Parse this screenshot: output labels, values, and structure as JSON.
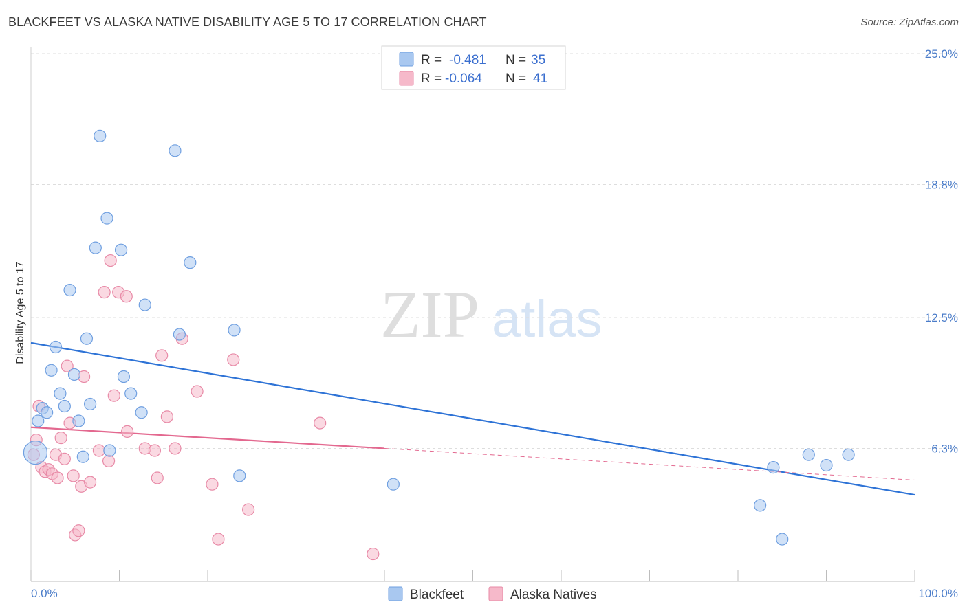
{
  "title": "BLACKFEET VS ALASKA NATIVE DISABILITY AGE 5 TO 17 CORRELATION CHART",
  "source": "Source: ZipAtlas.com",
  "watermark": {
    "zip": "ZIP",
    "atlas": "atlas"
  },
  "colors": {
    "blue_fill": "#a9c8f0",
    "blue_stroke": "#6f9fe0",
    "blue_line": "#2e73d6",
    "pink_fill": "#f6b9ca",
    "pink_stroke": "#e88aa7",
    "pink_line": "#e3688f",
    "tick_label": "#4a7cc9",
    "grid": "#dddddd"
  },
  "legend": {
    "rows": [
      {
        "r_label": "R =",
        "r_value": "-0.481",
        "n_label": "N =",
        "n_value": "35"
      },
      {
        "r_label": "R =",
        "r_value": "-0.064",
        "n_label": "N =",
        "n_value": "41"
      }
    ]
  },
  "bottom_legend": [
    "Blackfeet",
    "Alaska Natives"
  ],
  "chart_data": {
    "type": "scatter",
    "title": "BLACKFEET VS ALASKA NATIVE DISABILITY AGE 5 TO 17 CORRELATION CHART",
    "xlabel": "",
    "ylabel": "Disability Age 5 to 17",
    "xlim": [
      0,
      100
    ],
    "ylim": [
      0,
      25
    ],
    "x_tick_labels": [
      "0.0%",
      "100.0%"
    ],
    "y_ticks": [
      6.3,
      12.5,
      18.8,
      25.0
    ],
    "y_tick_labels": [
      "6.3%",
      "12.5%",
      "18.8%",
      "25.0%"
    ],
    "grid": "horizontal dashed",
    "series": [
      {
        "name": "Blackfeet",
        "trend": {
          "x": [
            0,
            100
          ],
          "y": [
            11.3,
            4.1
          ]
        },
        "points": [
          [
            0.5,
            6.1
          ],
          [
            0.8,
            7.6
          ],
          [
            1.3,
            8.2
          ],
          [
            1.8,
            8.0
          ],
          [
            2.3,
            10.0
          ],
          [
            2.8,
            11.1
          ],
          [
            3.3,
            8.9
          ],
          [
            3.8,
            8.3
          ],
          [
            4.4,
            13.8
          ],
          [
            4.9,
            9.8
          ],
          [
            5.4,
            7.6
          ],
          [
            5.9,
            5.9
          ],
          [
            6.3,
            11.5
          ],
          [
            6.7,
            8.4
          ],
          [
            7.3,
            15.8
          ],
          [
            7.8,
            21.1
          ],
          [
            8.6,
            17.2
          ],
          [
            8.9,
            6.2
          ],
          [
            10.2,
            15.7
          ],
          [
            10.5,
            9.7
          ],
          [
            11.3,
            8.9
          ],
          [
            12.5,
            8.0
          ],
          [
            12.9,
            13.1
          ],
          [
            16.3,
            20.4
          ],
          [
            16.8,
            11.7
          ],
          [
            18.0,
            15.1
          ],
          [
            23.0,
            11.9
          ],
          [
            23.6,
            5.0
          ],
          [
            41.0,
            4.6
          ],
          [
            82.5,
            3.6
          ],
          [
            84.0,
            5.4
          ],
          [
            85.0,
            2.0
          ],
          [
            88.0,
            6.0
          ],
          [
            90.0,
            5.5
          ],
          [
            92.5,
            6.0
          ]
        ]
      },
      {
        "name": "Alaska Natives",
        "trend": {
          "x": [
            0,
            40
          ],
          "y": [
            7.3,
            6.3
          ]
        },
        "trend_dashed": {
          "x": [
            40,
            100
          ],
          "y": [
            6.3,
            4.8
          ]
        },
        "points": [
          [
            0.3,
            6.0
          ],
          [
            0.6,
            6.7
          ],
          [
            0.9,
            8.3
          ],
          [
            1.2,
            5.4
          ],
          [
            1.6,
            5.2
          ],
          [
            2.0,
            5.3
          ],
          [
            2.4,
            5.1
          ],
          [
            2.8,
            6.0
          ],
          [
            3.0,
            4.9
          ],
          [
            3.4,
            6.8
          ],
          [
            3.8,
            5.8
          ],
          [
            4.1,
            10.2
          ],
          [
            4.4,
            7.5
          ],
          [
            4.8,
            5.0
          ],
          [
            5.0,
            2.2
          ],
          [
            5.4,
            2.4
          ],
          [
            5.7,
            4.5
          ],
          [
            6.0,
            9.7
          ],
          [
            6.7,
            4.7
          ],
          [
            7.7,
            6.2
          ],
          [
            8.3,
            13.7
          ],
          [
            8.8,
            5.7
          ],
          [
            9.0,
            15.2
          ],
          [
            9.4,
            8.8
          ],
          [
            9.9,
            13.7
          ],
          [
            10.8,
            13.5
          ],
          [
            10.9,
            7.1
          ],
          [
            12.9,
            6.3
          ],
          [
            14.0,
            6.2
          ],
          [
            14.3,
            4.9
          ],
          [
            14.8,
            10.7
          ],
          [
            15.4,
            7.8
          ],
          [
            16.3,
            6.3
          ],
          [
            17.1,
            11.5
          ],
          [
            18.8,
            9.0
          ],
          [
            20.5,
            4.6
          ],
          [
            21.2,
            2.0
          ],
          [
            22.9,
            10.5
          ],
          [
            24.6,
            3.4
          ],
          [
            32.7,
            7.5
          ],
          [
            38.7,
            1.3
          ]
        ]
      }
    ]
  }
}
